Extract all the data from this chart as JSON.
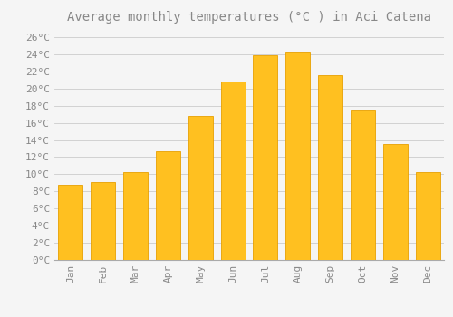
{
  "title": "Average monthly temperatures (°C ) in Aci Catena",
  "months": [
    "Jan",
    "Feb",
    "Mar",
    "Apr",
    "May",
    "Jun",
    "Jul",
    "Aug",
    "Sep",
    "Oct",
    "Nov",
    "Dec"
  ],
  "values": [
    8.8,
    9.1,
    10.3,
    12.7,
    16.8,
    20.8,
    23.9,
    24.3,
    21.6,
    17.4,
    13.5,
    10.3
  ],
  "bar_color": "#FFC020",
  "bar_edge_color": "#E8A000",
  "background_color": "#F5F5F5",
  "grid_color": "#CCCCCC",
  "text_color": "#888888",
  "ylim_max": 27,
  "ytick_step": 2,
  "title_fontsize": 10,
  "tick_fontsize": 8,
  "bar_width": 0.75
}
